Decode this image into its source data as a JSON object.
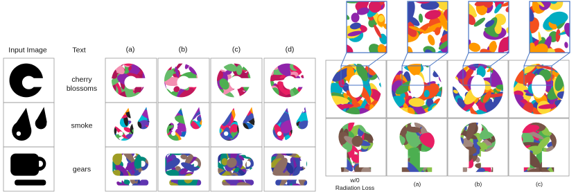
{
  "left_panel": {
    "input_header": "Input Image",
    "text_header": "Text",
    "columns": [
      "(a)",
      "(b)",
      "(c)",
      "(d)"
    ],
    "rows": [
      [
        "cherry",
        "blossoms"
      ],
      [
        "smoke"
      ],
      [
        "gears"
      ]
    ]
  },
  "right_panel": {
    "columns": [
      [
        "w/0",
        "Radiation Loss"
      ],
      [
        "(a)"
      ],
      [
        "(b)"
      ],
      [
        "(c)"
      ]
    ]
  }
}
